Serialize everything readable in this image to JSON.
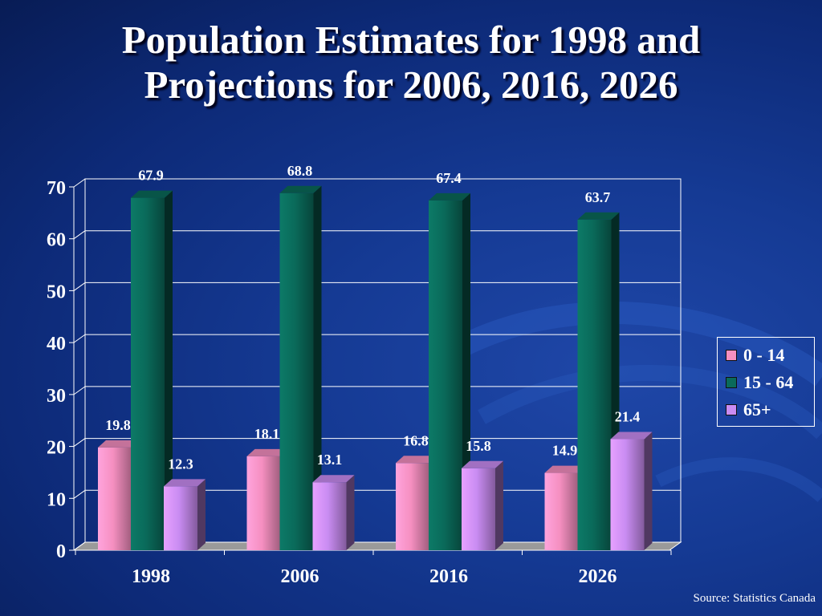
{
  "title": {
    "line1": "Population Estimates for 1998 and",
    "line2": "Projections for 2006, 2016, 2026"
  },
  "source": "Source: Statistics Canada",
  "colors": {
    "series_0_14": "#f58fc0",
    "series_15_64": "#0a6a5a",
    "series_65_plus": "#c98cf2",
    "background": "#153a94"
  },
  "chart_data": {
    "type": "bar",
    "categories": [
      "1998",
      "2006",
      "2016",
      "2026"
    ],
    "series": [
      {
        "name": "0 - 14",
        "values": [
          19.8,
          18.1,
          16.8,
          14.9
        ]
      },
      {
        "name": "15 - 64",
        "values": [
          67.9,
          68.8,
          67.4,
          63.7
        ]
      },
      {
        "name": "65+",
        "values": [
          12.3,
          13.1,
          15.8,
          21.4
        ]
      }
    ],
    "ylim": [
      0,
      70
    ],
    "yticks": [
      0,
      10,
      20,
      30,
      40,
      50,
      60,
      70
    ],
    "xlabel": "",
    "ylabel": "",
    "grid": true,
    "legend_position": "right"
  }
}
